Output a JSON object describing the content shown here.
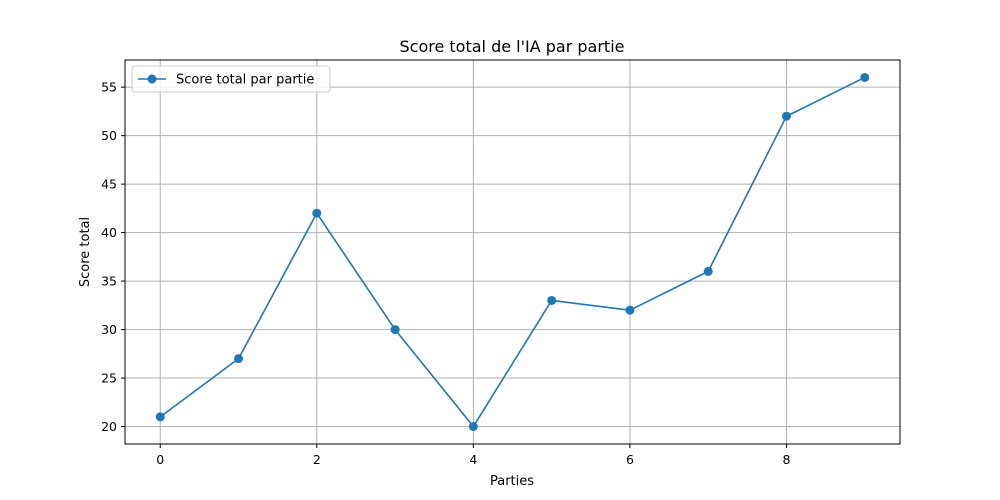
{
  "colors": {
    "series": "#1f77b4"
  },
  "chart_data": {
    "type": "line",
    "title": "Score total de l'IA par partie",
    "xlabel": "Parties",
    "ylabel": "Score total",
    "xlim": [
      -0.45,
      9.45
    ],
    "ylim": [
      18.2,
      57.8
    ],
    "xticks": [
      0,
      2,
      4,
      6,
      8
    ],
    "yticks": [
      20,
      25,
      30,
      35,
      40,
      45,
      50,
      55
    ],
    "grid": true,
    "legend_position": "upper-left",
    "series": [
      {
        "name": "Score total par partie",
        "marker": "circle",
        "x": [
          0,
          1,
          2,
          3,
          4,
          5,
          6,
          7,
          8,
          9
        ],
        "y": [
          21,
          27,
          42,
          30,
          20,
          33,
          32,
          36,
          52,
          56
        ]
      }
    ]
  }
}
